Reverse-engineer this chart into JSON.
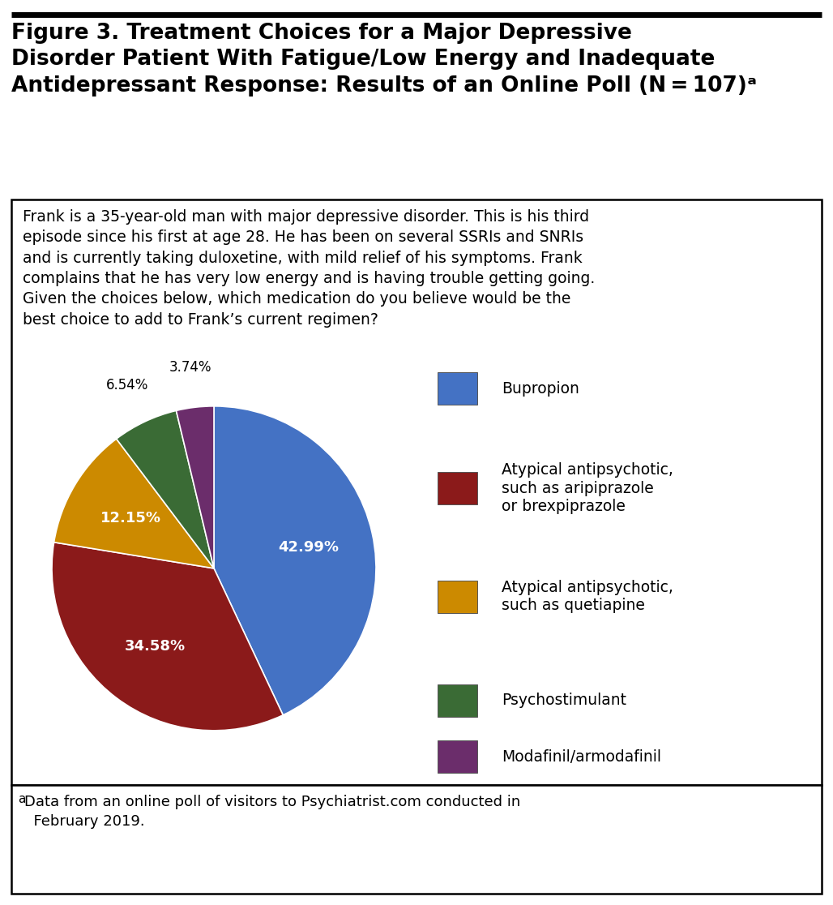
{
  "title": "Figure 3. Treatment Choices for a Major Depressive\nDisorder Patient With Fatigue/Low Energy and Inadequate\nAntidepressant Response: Results of an Online Poll (N = 107)ᵃ",
  "case_text": "Frank is a 35-year-old man with major depressive disorder. This is his third\nepisode since his first at age 28. He has been on several SSRIs and SNRIs\nand is currently taking duloxetine, with mild relief of his symptoms. Frank\ncomplains that he has very low energy and is having trouble getting going.\nGiven the choices below, which medication do you believe would be the\nbest choice to add to Frank’s current regimen?",
  "footnote_sup": "a",
  "footnote_body": "Data from an online poll of visitors to Psychiatrist.com conducted in\n  February 2019.",
  "slices": [
    42.99,
    34.58,
    12.15,
    6.54,
    3.74
  ],
  "pct_labels": [
    "42.99%",
    "34.58%",
    "12.15%",
    "6.54%",
    "3.74%"
  ],
  "colors": [
    "#4472C4",
    "#8B1A1A",
    "#CC8A00",
    "#3A6B35",
    "#6B2D6B"
  ],
  "legend_labels": [
    "Bupropion",
    "Atypical antipsychotic,\nsuch as aripiprazole\nor brexpiprazole",
    "Atypical antipsychotic,\nsuch as quetiapine",
    "Psychostimulant",
    "Modafinil/armodafinil"
  ],
  "startangle": 90,
  "bg_color": "#FFFFFF",
  "text_color": "#000000",
  "title_fontsize": 19,
  "case_fontsize": 13.5,
  "footnote_fontsize": 13,
  "pct_fontsize_in": 13,
  "pct_fontsize_out": 12,
  "legend_fontsize": 13.5
}
